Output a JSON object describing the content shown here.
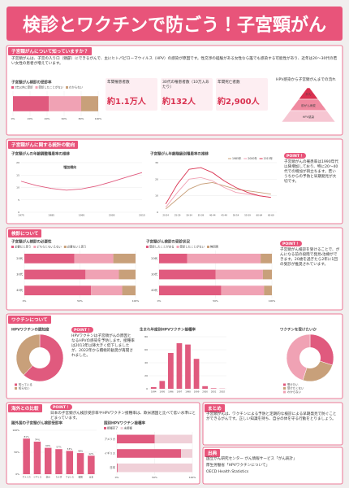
{
  "header": {
    "title": "検診とワクチンで防ごう！子宮頸がん"
  },
  "sections": [
    {
      "title": "子宮頸がんについて知っていますか？",
      "text": "子宮頸がんは、子宮の入り口（頸部）にできるがんで、主にヒトパピローマウイルス（HPV）の感染が原因です。性交渉の経験がある女性なら誰でも感染する可能性があり、近年は20〜30代の若い女性の患者が増えています。",
      "stats": [
        {
          "label": "年間罹患者数",
          "value": "約1.1万人"
        },
        {
          "label": "30代の罹患者数（10万人あたり）",
          "value": "約132人"
        },
        {
          "label": "年間死亡者数",
          "value": "約2,900人"
        }
      ],
      "pyramid_title": "HPV感染から子宮頸がんまでの流れ",
      "pyramid": [
        "がん",
        "前がん病変",
        "HPV感染"
      ]
    },
    {
      "title": "子宮頸がんに関する統計の動向",
      "point_label": "POINT！",
      "point": "子宮頸がんの罹患率は1990年代以降増加しており、特に20〜40代での増加が目立ちます。若いうちからの予防と早期発見が大切です。"
    },
    {
      "title": "検診について",
      "point_label": "POINT！",
      "point": "子宮頸がん検診を受けることで、がんになる前の段階で発見・治療ができます。20歳を過ぎたら2年に1回の受診が推奨されています。"
    },
    {
      "title": "ワクチンについて",
      "point_label": "POINT！",
      "point": "HPVワクチンは子宮頸がんの原因となるHPVの感染を予防します。接種率は2013年以降大きく低下しましたが、2022年から積極的勧奨が再開されました。"
    },
    {
      "title": "海外との比較",
      "point_label": "POINT！",
      "point": "日本の子宮頸がん検診受診率やHPVワクチン接種率は、欧米諸国と比べて低い水準にとどまっています。"
    },
    {
      "title": "まとめ",
      "text": "子宮頸がんは、ワクチンによる予防と定期的な検診による早期発見で防ぐことができるがんです。正しい知識を持ち、自分の体を守る行動をとりましょう。"
    },
    {
      "title": "出典",
      "items": [
        "国立がん研究センター がん情報サービス「がん統計」",
        "厚生労働省「HPVワクチンについて」",
        "OECD Health Statistics"
      ]
    }
  ],
  "chart_data": [
    {
      "type": "hbar_stack",
      "title": "子宮頸がん検診の受診率",
      "categories": [
        null
      ],
      "series": [
        {
          "name": "2年以内に受診",
          "color": "#e05a7e",
          "values": [
            42
          ]
        },
        {
          "name": "受診したことがない",
          "color": "#f0a2b4",
          "values": [
            38
          ]
        },
        {
          "name": "わからない",
          "color": "#c8a07a",
          "values": [
            20
          ]
        }
      ],
      "xlim": [
        0,
        100
      ],
      "xticks": [
        {
          "value": 0,
          "label": "0%"
        },
        {
          "value": 20,
          "label": "20%"
        },
        {
          "value": 40,
          "label": "40%"
        },
        {
          "value": 60,
          "label": "60%"
        },
        {
          "value": 80,
          "label": "80%"
        },
        {
          "value": 100,
          "label": "100%"
        }
      ]
    },
    {
      "type": "line",
      "title": "子宮頸がんの年齢調整罹患率の推移",
      "annotation": "増加傾向",
      "x": [
        1975,
        1980,
        1985,
        1990,
        1995,
        2000,
        2005,
        2010,
        2015
      ],
      "values": [
        12.5,
        10.8,
        9.6,
        8.9,
        9.4,
        10.6,
        12.3,
        14.2,
        16.0
      ],
      "color": "#e05a7e",
      "xlim": [
        1975,
        2015
      ],
      "xticks": [
        1975,
        1985,
        1995,
        2005,
        2015
      ],
      "ylim": [
        0,
        20
      ],
      "yticks": [
        0,
        5,
        10,
        15,
        20
      ]
    },
    {
      "type": "line",
      "title": "子宮頸がん年齢階級別罹患率の推移",
      "categories": [
        "20-24",
        "25-29",
        "30-34",
        "35-39",
        "40-44",
        "45-49",
        "50-54",
        "55-59",
        "60-64",
        "65-69"
      ],
      "series": [
        {
          "name": "1985年",
          "color": "#c8a07a",
          "values": [
            2,
            8,
            14,
            17,
            18,
            16,
            14,
            13,
            12,
            11
          ]
        },
        {
          "name": "2000年",
          "color": "#f0a2b4",
          "values": [
            3,
            12,
            20,
            21,
            19,
            15,
            12,
            11,
            10,
            9
          ]
        },
        {
          "name": "2015年",
          "color": "#d9304f",
          "values": [
            5,
            17,
            26,
            27,
            24,
            19,
            15,
            12,
            10,
            9
          ]
        }
      ],
      "ylim": [
        0,
        30
      ],
      "yticks": [
        0,
        10,
        20,
        30
      ]
    },
    {
      "type": "hbar_stack",
      "title": "子宮頸がん検診の必要性",
      "categories": [
        "20代",
        "30代",
        "40代"
      ],
      "series": [
        {
          "name": "必要だと思う",
          "color": "#e05a7e",
          "values": [
            45,
            55,
            60
          ]
        },
        {
          "name": "どちらともいえない",
          "color": "#f0a2b4",
          "values": [
            35,
            30,
            28
          ]
        },
        {
          "name": "必要ないと思う",
          "color": "#c8a07a",
          "values": [
            20,
            15,
            12
          ]
        }
      ],
      "xlim": [
        0,
        100
      ],
      "xticks": [
        {
          "value": 0,
          "label": "0%"
        },
        {
          "value": 50,
          "label": "50%"
        },
        {
          "value": 100,
          "label": "100%"
        }
      ]
    },
    {
      "type": "hbar_stack",
      "title": "子宮頸がん検診の受診状況",
      "categories": [
        "20代",
        "30代",
        "40代"
      ],
      "series": [
        {
          "name": "受診したことがある",
          "color": "#e05a7e",
          "values": [
            25,
            50,
            55
          ]
        },
        {
          "name": "受診したことがない",
          "color": "#f0a2b4",
          "values": [
            65,
            42,
            38
          ]
        },
        {
          "name": "無回答",
          "color": "#c8a07a",
          "values": [
            10,
            8,
            7
          ]
        }
      ],
      "xlim": [
        0,
        100
      ],
      "xticks": [
        {
          "value": 0,
          "label": "0%"
        },
        {
          "value": 50,
          "label": "50%"
        },
        {
          "value": 100,
          "label": "100%"
        }
      ]
    },
    {
      "type": "pie",
      "title": "HPVワクチンの認知度",
      "categories": [
        "知っている",
        "知らない"
      ],
      "values": [
        62,
        38
      ],
      "colors": [
        "#e05a7e",
        "#c8a07a"
      ]
    },
    {
      "type": "vbar",
      "title": "生まれ年度別HPVワクチン接種率",
      "categories": [
        "1994",
        "1995",
        "1996",
        "1997",
        "1998",
        "1999",
        "2000",
        "2001",
        "2002"
      ],
      "values": [
        2.5,
        12,
        55,
        70,
        68,
        46,
        4,
        0.8,
        0.3
      ],
      "color": "#e05a7e",
      "ylim": [
        0,
        80
      ],
      "yticks": [
        0,
        20,
        40,
        60,
        80
      ]
    },
    {
      "type": "pie",
      "title": "ワクチンを受けたいか",
      "categories": [
        "受けたい",
        "受けたくない",
        "わからない"
      ],
      "values": [
        30,
        25,
        45
      ],
      "colors": [
        "#e05a7e",
        "#c8a07a",
        "#f0a2b4"
      ]
    },
    {
      "type": "vbar",
      "title": "諸外国の子宮頸がん検診受診率",
      "categories": [
        "アメリカ",
        "イギリス",
        "豪州",
        "カナダ",
        "フランス",
        "韓国",
        "日本"
      ],
      "values": [
        81,
        74,
        60,
        57,
        53,
        48,
        42
      ],
      "value_labels": [
        "81%",
        "74%",
        "60%",
        "57%",
        "53%",
        "48%",
        "42%"
      ],
      "color": "#e05a7e",
      "ylim": [
        0,
        100
      ],
      "yticks": [
        {
          "value": 0,
          "label": "0%"
        },
        {
          "value": 50,
          "label": "50%"
        },
        {
          "value": 100,
          "label": "100%"
        }
      ]
    },
    {
      "type": "hbar_stack",
      "title": "国別HPVワクチン接種率",
      "categories": [
        "アメリカ",
        "イギリス",
        "日本"
      ],
      "series": [
        {
          "name": "接種完了",
          "color": "#e05a7e",
          "values": [
            50,
            85,
            1
          ]
        },
        {
          "name": "未接種",
          "color": "#f0d0d8",
          "values": [
            50,
            15,
            99
          ]
        }
      ],
      "xlim": [
        0,
        100
      ],
      "xticks": [
        {
          "value": 0,
          "label": "0%"
        },
        {
          "value": 50,
          "label": "50%"
        },
        {
          "value": 100,
          "label": "100%"
        }
      ]
    }
  ]
}
